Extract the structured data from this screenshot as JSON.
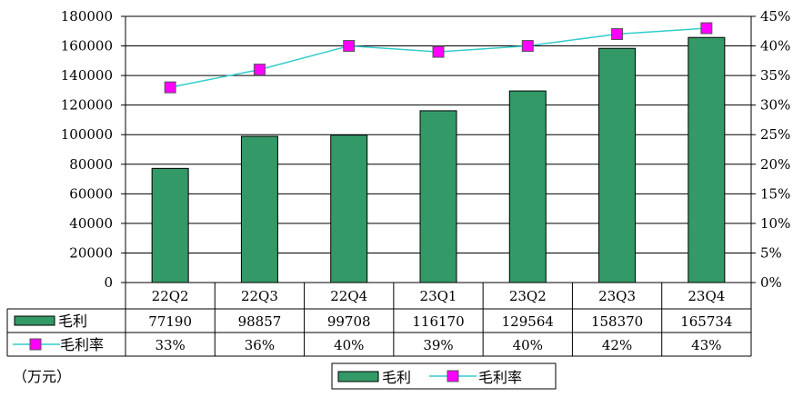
{
  "chart_data": {
    "type": "bar",
    "categories": [
      "22Q2",
      "22Q3",
      "22Q4",
      "23Q1",
      "23Q2",
      "23Q3",
      "23Q4"
    ],
    "series": [
      {
        "name": "毛利",
        "kind": "bar",
        "axis": "left",
        "color": "#339966",
        "values": [
          77190,
          98857,
          99708,
          116170,
          129564,
          158370,
          165734
        ]
      },
      {
        "name": "毛利率",
        "kind": "line",
        "axis": "right",
        "line_color": "#33cccc",
        "marker_color": "#ff00ff",
        "values": [
          33,
          36,
          40,
          39,
          40,
          42,
          43
        ],
        "labels": [
          "33%",
          "36%",
          "40%",
          "39%",
          "40%",
          "42%",
          "43%"
        ]
      }
    ],
    "y_left": {
      "min": 0,
      "max": 180000,
      "step": 20000,
      "ticks": [
        "0",
        "20000",
        "40000",
        "60000",
        "80000",
        "100000",
        "120000",
        "140000",
        "160000",
        "180000"
      ]
    },
    "y_right": {
      "min": 0,
      "max": 45,
      "step": 5,
      "ticks": [
        "0%",
        "5%",
        "10%",
        "15%",
        "20%",
        "25%",
        "30%",
        "35%",
        "40%",
        "45%"
      ]
    },
    "unit_label": "（万元）",
    "grid": "horizontal",
    "legend_position": "bottom-center",
    "data_table": true
  }
}
